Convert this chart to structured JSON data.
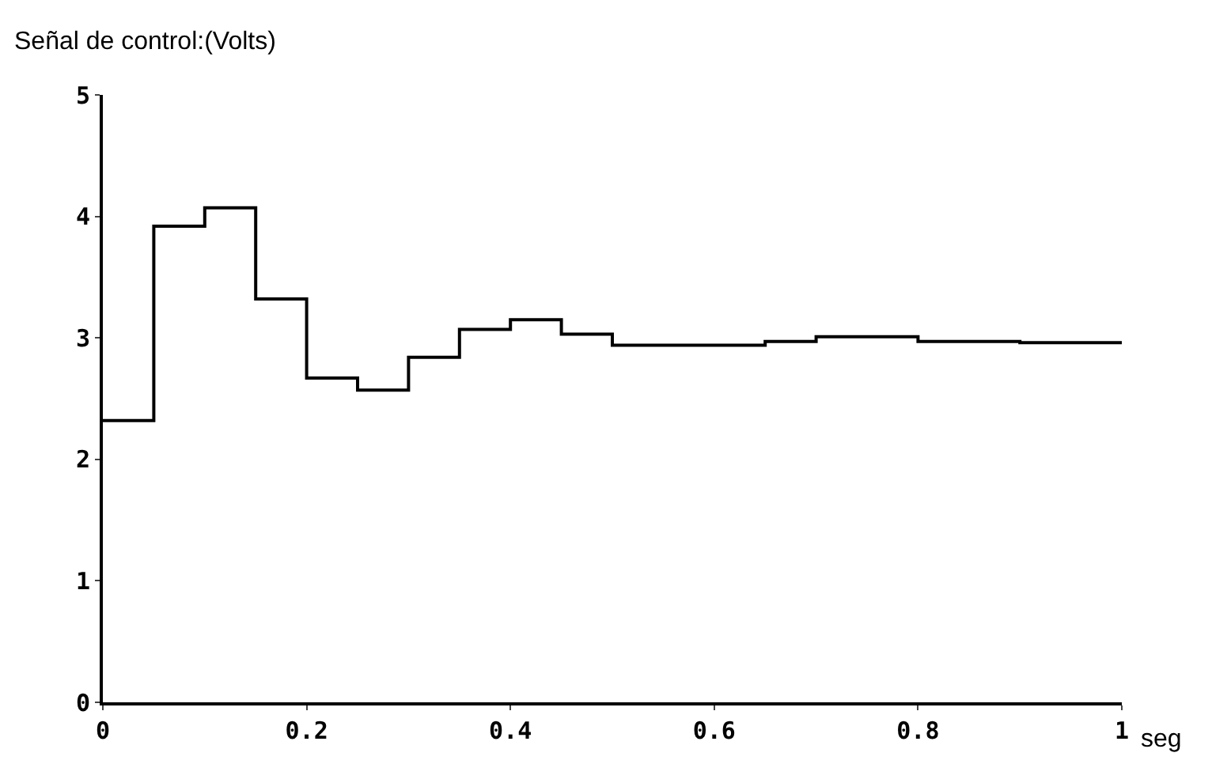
{
  "chart_data": {
    "type": "step",
    "ylabel": "Señal de control:(Volts)",
    "xlabel": "seg",
    "x": [
      0,
      0.05,
      0.1,
      0.15,
      0.2,
      0.25,
      0.3,
      0.35,
      0.4,
      0.45,
      0.5,
      0.55,
      0.6,
      0.65,
      0.7,
      0.75,
      0.8,
      0.85,
      0.9,
      0.95,
      1
    ],
    "series": [
      {
        "color": "#000000",
        "values": [
          2.32,
          3.92,
          4.07,
          3.32,
          2.67,
          2.57,
          2.84,
          3.07,
          3.15,
          3.03,
          2.94,
          2.94,
          2.94,
          2.97,
          3.01,
          3.01,
          2.97,
          2.97,
          2.96,
          2.96,
          2.96
        ]
      }
    ],
    "xlim": [
      0,
      1
    ],
    "ylim": [
      0,
      5
    ],
    "xticks": [
      0,
      0.2,
      0.4,
      0.6,
      0.8,
      1
    ],
    "yticks": [
      0,
      1,
      2,
      3,
      4,
      5
    ],
    "marker": "none",
    "line_style": "solid"
  }
}
